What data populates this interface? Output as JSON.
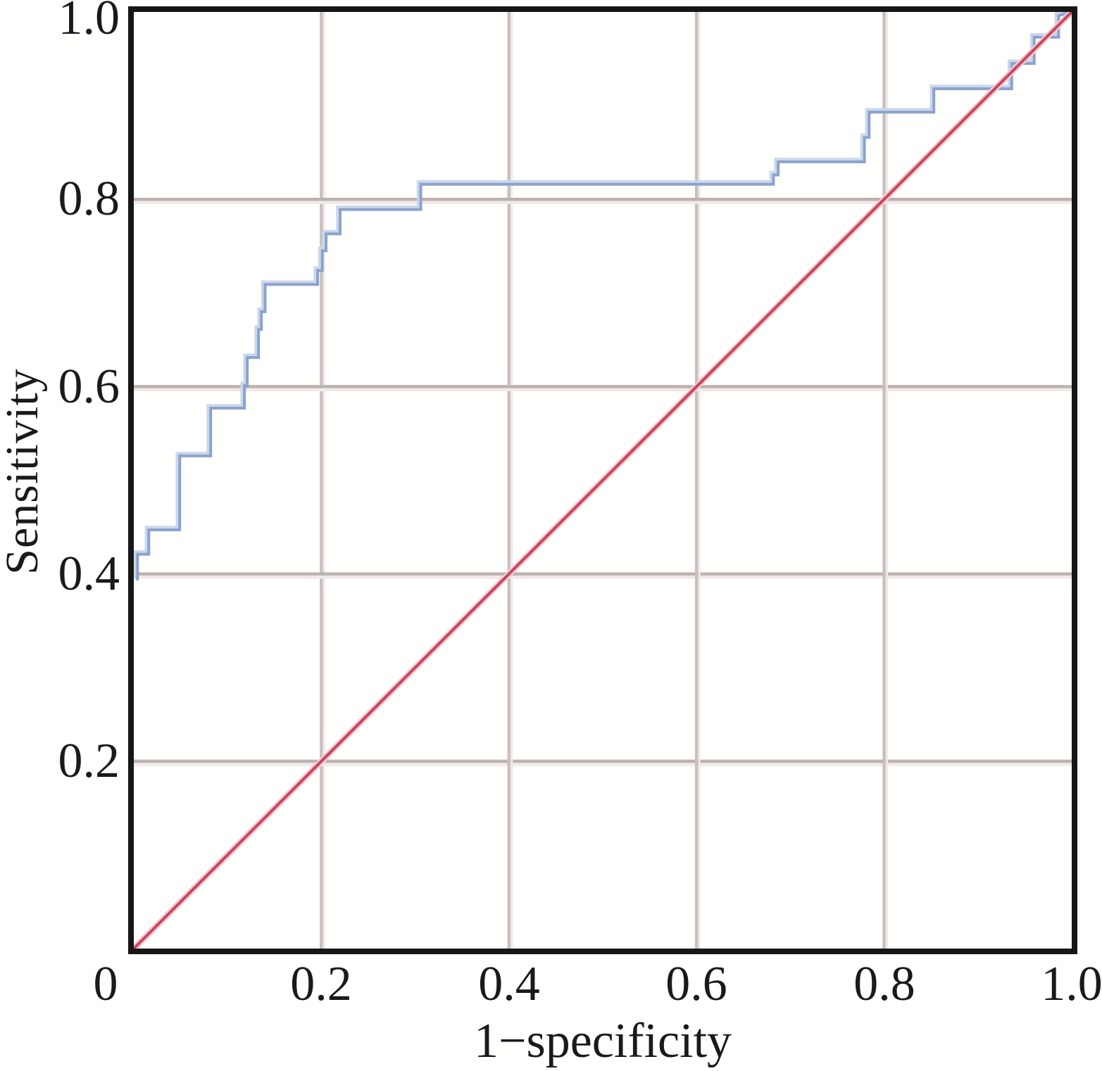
{
  "figure": {
    "background_color": "#fffffe",
    "text_color": "#1a1a1a"
  },
  "chart_data": {
    "type": "line",
    "subtype": "roc-step-plot",
    "title": "",
    "xlabel": "1−specificity",
    "ylabel": "Sensitivity",
    "xlim": [
      0,
      1
    ],
    "ylim": [
      0,
      1
    ],
    "grid": true,
    "grid_tick_values": [
      0.2,
      0.4,
      0.6,
      0.8
    ],
    "x_tick_values": [
      0,
      0.2,
      0.4,
      0.6,
      0.8,
      1.0
    ],
    "x_tick_labels": [
      "0",
      "0.2",
      "0.4",
      "0.6",
      "0.8",
      "1.0"
    ],
    "y_tick_values": [
      1.0,
      0.8,
      0.6,
      0.4,
      0.2
    ],
    "y_tick_labels": [
      "1.0",
      "0.8",
      "0.6",
      "0.4",
      "0.2"
    ],
    "legend": "none",
    "series": [
      {
        "name": "ROC curve",
        "kind": "step",
        "color": "#8ba3cd",
        "halo_color": "#cbd7eb",
        "points": [
          [
            0.004,
            0.393
          ],
          [
            0.004,
            0.421
          ],
          [
            0.016,
            0.421
          ],
          [
            0.016,
            0.447
          ],
          [
            0.049,
            0.447
          ],
          [
            0.049,
            0.526
          ],
          [
            0.082,
            0.526
          ],
          [
            0.082,
            0.577
          ],
          [
            0.118,
            0.577
          ],
          [
            0.118,
            0.601
          ],
          [
            0.121,
            0.601
          ],
          [
            0.121,
            0.631
          ],
          [
            0.133,
            0.631
          ],
          [
            0.133,
            0.661
          ],
          [
            0.136,
            0.661
          ],
          [
            0.136,
            0.68
          ],
          [
            0.14,
            0.68
          ],
          [
            0.14,
            0.709
          ],
          [
            0.196,
            0.709
          ],
          [
            0.196,
            0.724
          ],
          [
            0.201,
            0.724
          ],
          [
            0.201,
            0.745
          ],
          [
            0.205,
            0.745
          ],
          [
            0.205,
            0.763
          ],
          [
            0.22,
            0.763
          ],
          [
            0.22,
            0.789
          ],
          [
            0.306,
            0.789
          ],
          [
            0.306,
            0.816
          ],
          [
            0.682,
            0.816
          ],
          [
            0.682,
            0.826
          ],
          [
            0.687,
            0.826
          ],
          [
            0.687,
            0.84
          ],
          [
            0.779,
            0.84
          ],
          [
            0.779,
            0.866
          ],
          [
            0.784,
            0.866
          ],
          [
            0.784,
            0.893
          ],
          [
            0.853,
            0.893
          ],
          [
            0.853,
            0.918
          ],
          [
            0.936,
            0.918
          ],
          [
            0.936,
            0.945
          ],
          [
            0.96,
            0.945
          ],
          [
            0.96,
            0.973
          ],
          [
            0.986,
            0.973
          ],
          [
            0.986,
            0.996
          ],
          [
            1.0,
            1.0
          ]
        ]
      },
      {
        "name": "reference diagonal",
        "kind": "line",
        "color": "#c8465f",
        "halo_color": "#f2cbd3",
        "points": [
          [
            0,
            0
          ],
          [
            1,
            1
          ]
        ]
      }
    ],
    "style": {
      "frame_color": "#161616",
      "grid_horizontal_color": "#bcb2ae",
      "grid_vertical_color": "#c9c0bd",
      "grid_shadow_color": "#f1e9e9"
    }
  }
}
